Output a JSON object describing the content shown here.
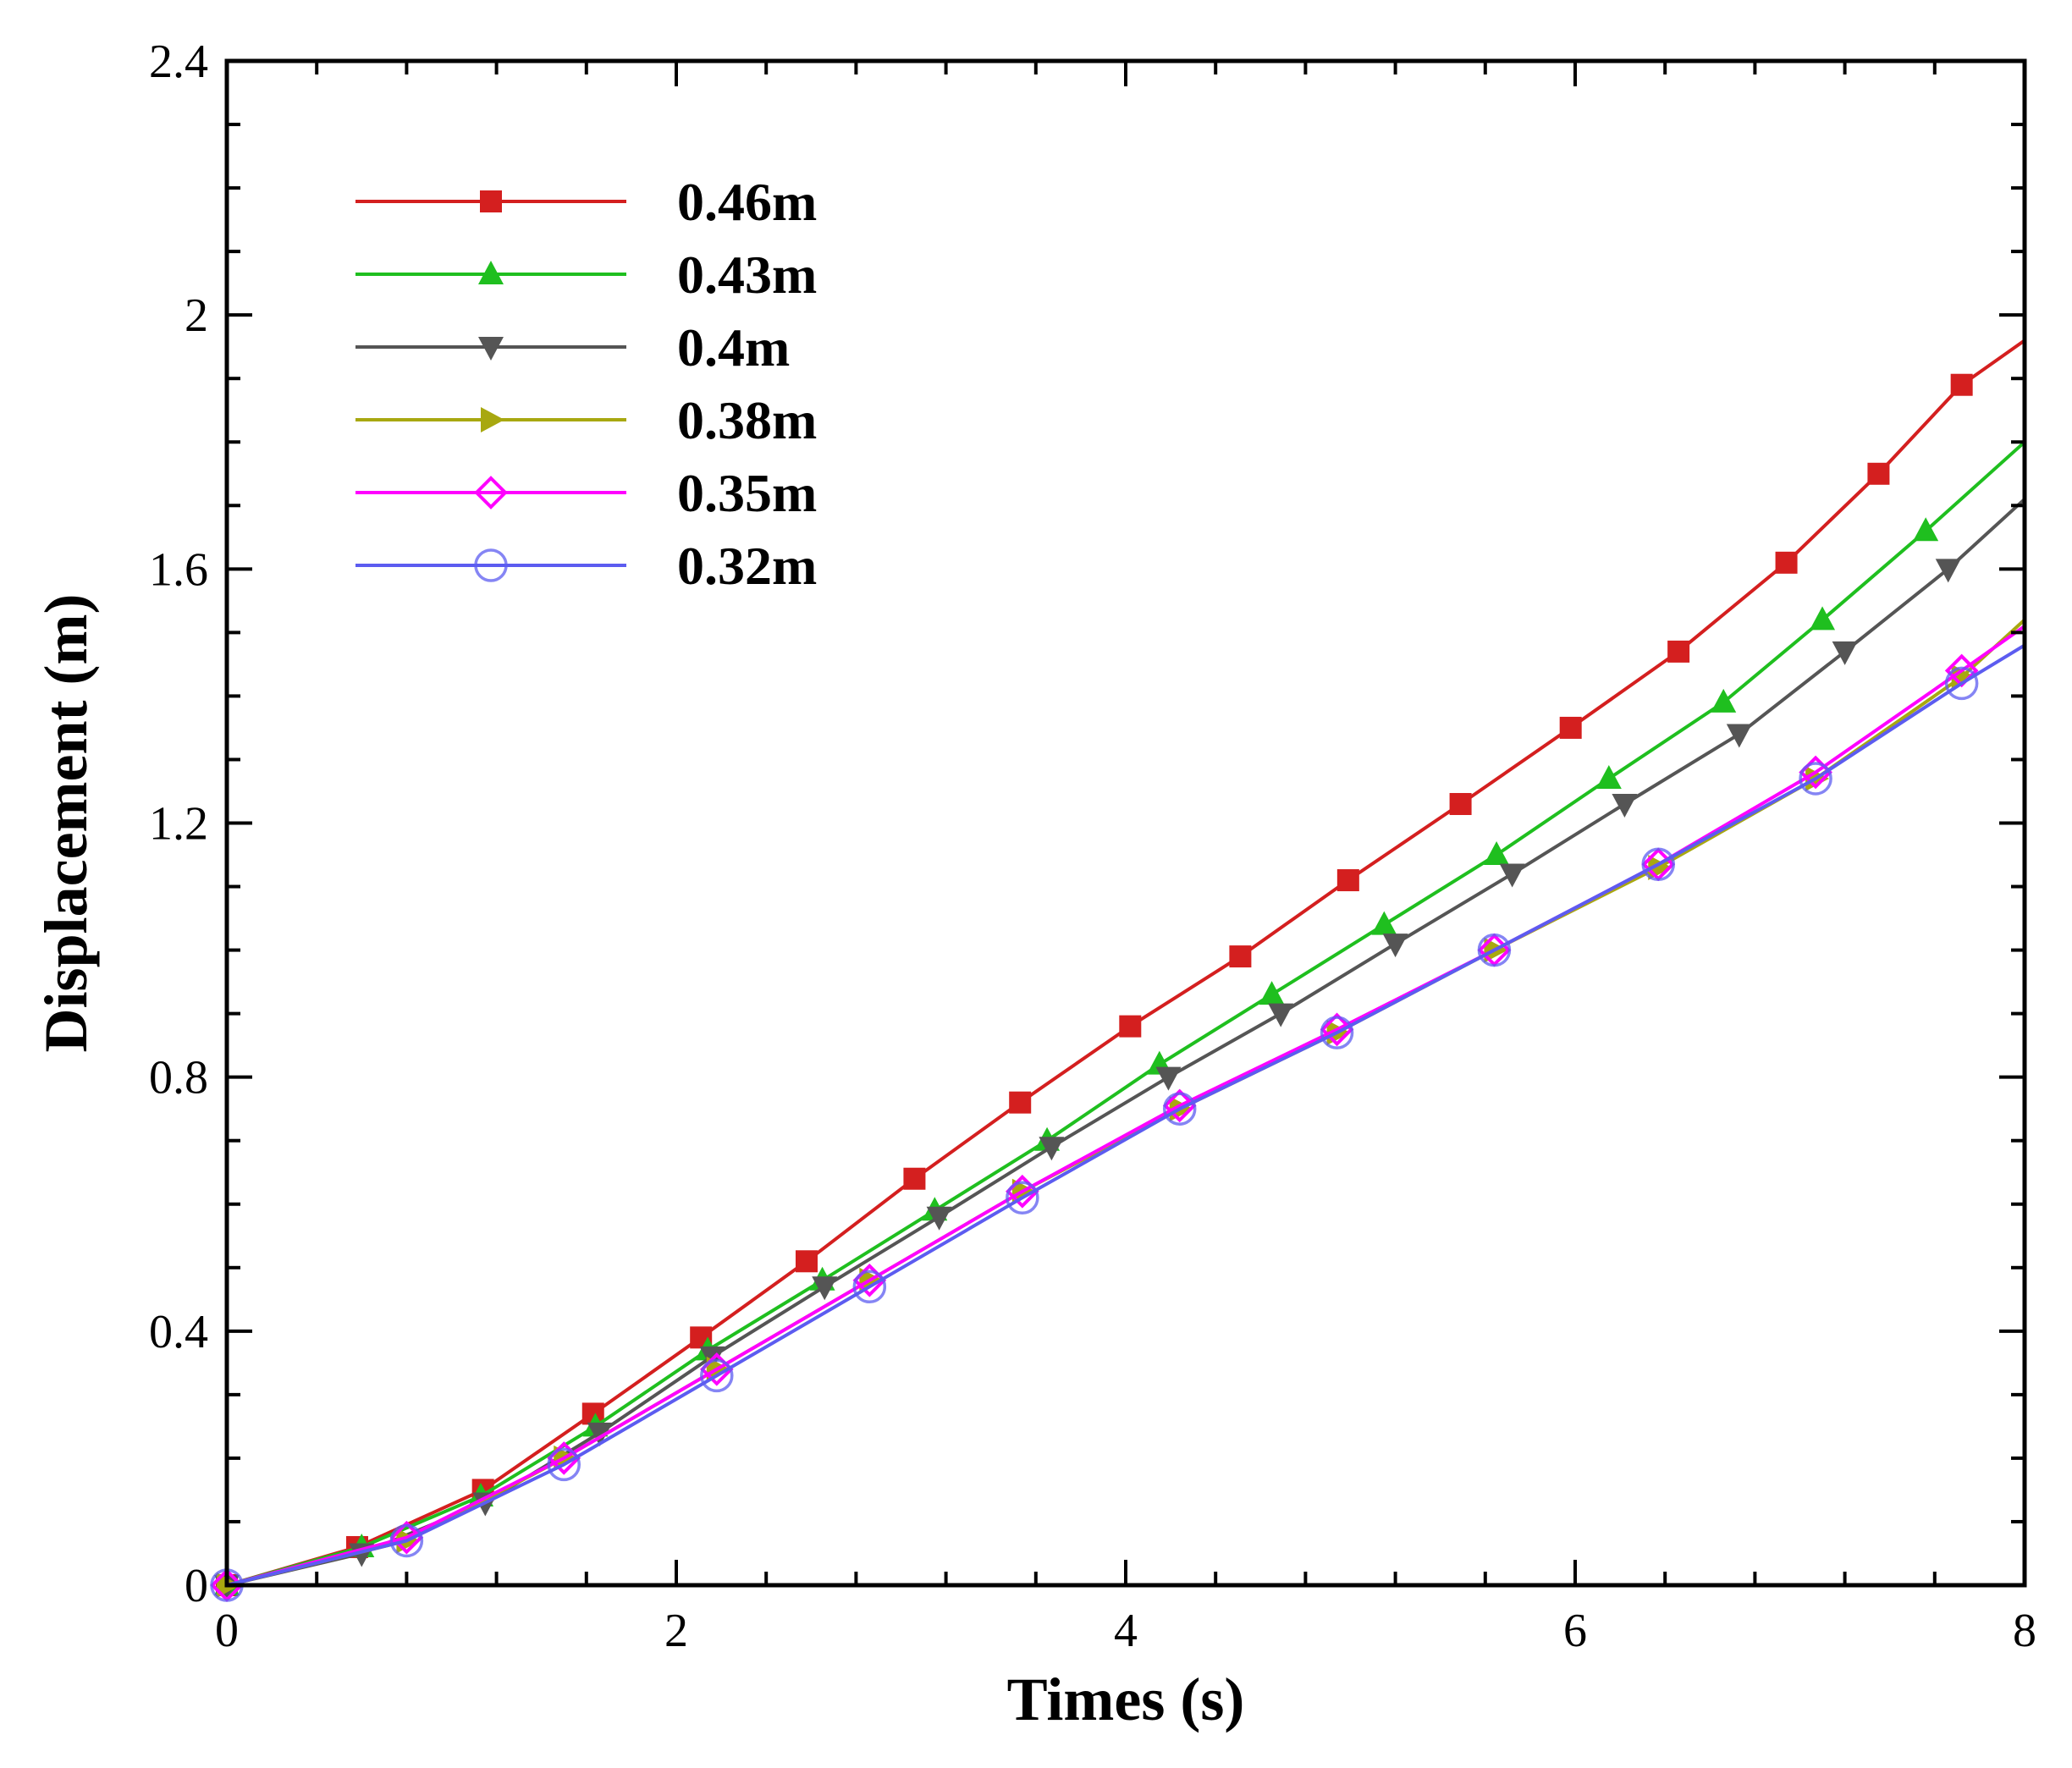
{
  "chart_data": {
    "type": "line",
    "title": "",
    "xlabel": "Times (s)",
    "ylabel": "Displacement (m)",
    "xlim": [
      0,
      8
    ],
    "ylim": [
      0,
      2.4
    ],
    "x_ticks": [
      "0",
      "2",
      "4",
      "6",
      "8"
    ],
    "y_ticks": [
      "0",
      "0.4",
      "0.8",
      "1.2",
      "1.6",
      "2",
      "2.4"
    ],
    "grid": false,
    "legend_position": "top-left",
    "series": [
      {
        "name": "0.46m",
        "color": "#d41f1f",
        "marker": "square-filled",
        "x": [
          0,
          0.58,
          1.14,
          1.63,
          2.11,
          2.58,
          3.06,
          3.53,
          4.02,
          4.51,
          4.99,
          5.49,
          5.98,
          6.46,
          6.94,
          7.35,
          7.72,
          8.0
        ],
        "y": [
          0,
          0.06,
          0.15,
          0.27,
          0.39,
          0.51,
          0.64,
          0.76,
          0.88,
          0.99,
          1.11,
          1.23,
          1.35,
          1.47,
          1.61,
          1.75,
          1.89,
          1.96
        ]
      },
      {
        "name": "0.43m",
        "color": "#1fbf1f",
        "marker": "triangle-up-filled",
        "x": [
          0,
          0.6,
          1.13,
          1.64,
          2.14,
          2.65,
          3.15,
          3.65,
          4.15,
          4.65,
          5.15,
          5.65,
          6.15,
          6.66,
          7.1,
          7.56,
          8.0
        ],
        "y": [
          0,
          0.06,
          0.14,
          0.25,
          0.37,
          0.48,
          0.59,
          0.7,
          0.82,
          0.93,
          1.04,
          1.15,
          1.27,
          1.39,
          1.52,
          1.66,
          1.8
        ]
      },
      {
        "name": "0.4m",
        "color": "#555555",
        "marker": "triangle-down-filled",
        "x": [
          0,
          0.6,
          1.15,
          1.66,
          2.16,
          2.66,
          3.17,
          3.67,
          4.19,
          4.69,
          5.2,
          5.72,
          6.22,
          6.73,
          7.2,
          7.66,
          8.0
        ],
        "y": [
          0,
          0.05,
          0.13,
          0.24,
          0.36,
          0.47,
          0.58,
          0.69,
          0.8,
          0.9,
          1.01,
          1.12,
          1.23,
          1.34,
          1.47,
          1.6,
          1.71
        ]
      },
      {
        "name": "0.38m",
        "color": "#a8a810",
        "marker": "triangle-right-filled",
        "x": [
          0,
          0.8,
          1.5,
          2.18,
          2.86,
          3.54,
          4.24,
          4.94,
          5.64,
          6.37,
          7.07,
          7.72,
          8.0
        ],
        "y": [
          0,
          0.07,
          0.2,
          0.34,
          0.48,
          0.62,
          0.75,
          0.87,
          1.0,
          1.13,
          1.27,
          1.43,
          1.52
        ]
      },
      {
        "name": "0.35m",
        "color": "#ff00ff",
        "marker": "diamond-open",
        "x": [
          0,
          0.8,
          1.5,
          2.18,
          2.86,
          3.54,
          4.24,
          4.94,
          5.64,
          6.37,
          7.07,
          7.72,
          8.0
        ],
        "y": [
          0,
          0.075,
          0.2,
          0.34,
          0.48,
          0.62,
          0.755,
          0.875,
          1.0,
          1.135,
          1.28,
          1.44,
          1.51
        ]
      },
      {
        "name": "0.32m",
        "color": "#5c5cf0",
        "marker": "circle-open",
        "x": [
          0,
          0.8,
          1.5,
          2.18,
          2.86,
          3.54,
          4.24,
          4.94,
          5.64,
          6.37,
          7.07,
          7.72,
          8.0
        ],
        "y": [
          0,
          0.07,
          0.19,
          0.33,
          0.47,
          0.61,
          0.75,
          0.87,
          1.0,
          1.135,
          1.27,
          1.42,
          1.48
        ]
      }
    ]
  }
}
